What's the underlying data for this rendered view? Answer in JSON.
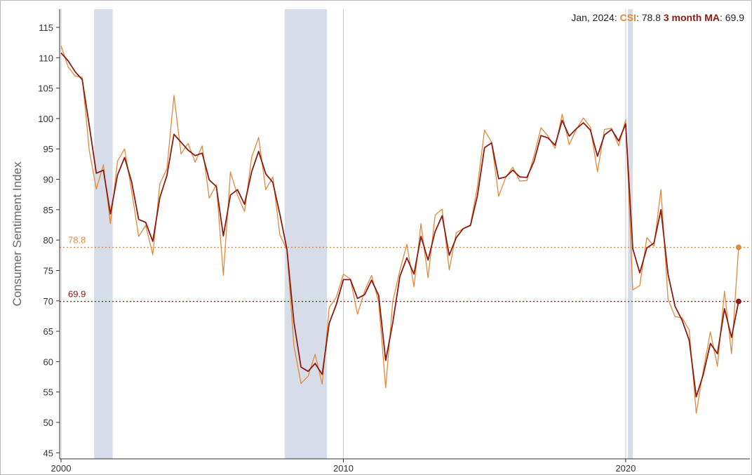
{
  "readout": {
    "date": "Jan, 2024",
    "sep1": ": ",
    "csi_name": "CSI",
    "sep2": ": ",
    "csi_value": "78.8",
    "ma_name": " 3 month MA",
    "sep3": ": ",
    "ma_value": "69.9"
  },
  "colors": {
    "csi": "#e08a3c",
    "ma": "#8b1a12",
    "recession": "#d6dde9",
    "axis": "#333333",
    "gridline": "#c8c8c8"
  },
  "chart_data": {
    "type": "line",
    "title": "",
    "xlabel": "",
    "ylabel": "Consumer Sentiment Index",
    "xlim": [
      1999.95,
      2024.4
    ],
    "ylim": [
      44,
      118
    ],
    "y_ticks": [
      45,
      50,
      55,
      60,
      65,
      70,
      75,
      80,
      85,
      90,
      95,
      100,
      105,
      110,
      115
    ],
    "x_ticks": [
      2000,
      2010,
      2020
    ],
    "x_tick_labels": [
      "2000",
      "2010",
      "2020"
    ],
    "recessions": [
      [
        2001.17,
        2001.83
      ],
      [
        2007.92,
        2009.42
      ],
      [
        2020.08,
        2020.25
      ]
    ],
    "reference_lines": [
      {
        "series": "CSI",
        "value": 78.8,
        "label": "78.8"
      },
      {
        "series": "3 month MA",
        "value": 69.9,
        "label": "69.9"
      }
    ],
    "series": [
      {
        "name": "CSI",
        "points": [
          [
            2000.0,
            112.0
          ],
          [
            2000.25,
            108.5
          ],
          [
            2000.5,
            107.0
          ],
          [
            2000.75,
            106.8
          ],
          [
            2001.0,
            94.7
          ],
          [
            2001.25,
            88.4
          ],
          [
            2001.5,
            92.4
          ],
          [
            2001.75,
            82.7
          ],
          [
            2002.0,
            93.0
          ],
          [
            2002.25,
            95.0
          ],
          [
            2002.5,
            88.1
          ],
          [
            2002.75,
            80.6
          ],
          [
            2003.0,
            82.4
          ],
          [
            2003.25,
            77.6
          ],
          [
            2003.5,
            89.3
          ],
          [
            2003.75,
            91.7
          ],
          [
            2004.0,
            103.8
          ],
          [
            2004.25,
            94.2
          ],
          [
            2004.5,
            95.9
          ],
          [
            2004.75,
            92.8
          ],
          [
            2005.0,
            95.5
          ],
          [
            2005.25,
            86.9
          ],
          [
            2005.5,
            89.1
          ],
          [
            2005.75,
            74.2
          ],
          [
            2006.0,
            91.2
          ],
          [
            2006.25,
            87.4
          ],
          [
            2006.5,
            84.7
          ],
          [
            2006.75,
            93.6
          ],
          [
            2007.0,
            96.9
          ],
          [
            2007.25,
            88.3
          ],
          [
            2007.5,
            90.4
          ],
          [
            2007.75,
            80.9
          ],
          [
            2008.0,
            78.4
          ],
          [
            2008.25,
            62.6
          ],
          [
            2008.5,
            56.4
          ],
          [
            2008.75,
            57.6
          ],
          [
            2009.0,
            61.2
          ],
          [
            2009.25,
            56.3
          ],
          [
            2009.5,
            68.9
          ],
          [
            2009.75,
            70.6
          ],
          [
            2010.0,
            74.4
          ],
          [
            2010.25,
            73.6
          ],
          [
            2010.5,
            67.8
          ],
          [
            2010.75,
            71.6
          ],
          [
            2011.0,
            74.2
          ],
          [
            2011.25,
            69.8
          ],
          [
            2011.5,
            55.7
          ],
          [
            2011.75,
            69.9
          ],
          [
            2012.0,
            75.0
          ],
          [
            2012.25,
            79.3
          ],
          [
            2012.5,
            72.3
          ],
          [
            2012.75,
            82.7
          ],
          [
            2013.0,
            73.8
          ],
          [
            2013.25,
            84.1
          ],
          [
            2013.5,
            85.1
          ],
          [
            2013.75,
            75.1
          ],
          [
            2014.0,
            81.2
          ],
          [
            2014.25,
            81.9
          ],
          [
            2014.5,
            82.5
          ],
          [
            2014.75,
            88.8
          ],
          [
            2015.0,
            98.1
          ],
          [
            2015.25,
            96.1
          ],
          [
            2015.5,
            87.2
          ],
          [
            2015.75,
            90.3
          ],
          [
            2016.0,
            92.0
          ],
          [
            2016.25,
            89.7
          ],
          [
            2016.5,
            89.8
          ],
          [
            2016.75,
            93.8
          ],
          [
            2017.0,
            98.5
          ],
          [
            2017.25,
            97.1
          ],
          [
            2017.5,
            95.1
          ],
          [
            2017.75,
            100.7
          ],
          [
            2018.0,
            95.7
          ],
          [
            2018.25,
            98.2
          ],
          [
            2018.5,
            100.1
          ],
          [
            2018.75,
            98.6
          ],
          [
            2019.0,
            91.2
          ],
          [
            2019.25,
            98.2
          ],
          [
            2019.5,
            98.4
          ],
          [
            2019.75,
            95.5
          ],
          [
            2020.0,
            99.8
          ],
          [
            2020.25,
            71.8
          ],
          [
            2020.5,
            72.5
          ],
          [
            2020.75,
            80.4
          ],
          [
            2021.0,
            79.0
          ],
          [
            2021.25,
            88.3
          ],
          [
            2021.5,
            70.3
          ],
          [
            2021.75,
            67.4
          ],
          [
            2022.0,
            67.2
          ],
          [
            2022.25,
            65.2
          ],
          [
            2022.5,
            51.5
          ],
          [
            2022.75,
            58.6
          ],
          [
            2023.0,
            64.9
          ],
          [
            2023.25,
            59.2
          ],
          [
            2023.5,
            71.6
          ],
          [
            2023.75,
            61.3
          ],
          [
            2024.0,
            78.8
          ]
        ]
      },
      {
        "name": "3 month MA",
        "points": [
          [
            2000.0,
            110.8
          ],
          [
            2000.25,
            109.5
          ],
          [
            2000.5,
            107.7
          ],
          [
            2000.75,
            106.4
          ],
          [
            2001.0,
            98.8
          ],
          [
            2001.25,
            91.0
          ],
          [
            2001.5,
            91.5
          ],
          [
            2001.75,
            84.3
          ],
          [
            2002.0,
            90.7
          ],
          [
            2002.25,
            93.6
          ],
          [
            2002.5,
            89.6
          ],
          [
            2002.75,
            83.4
          ],
          [
            2003.0,
            82.9
          ],
          [
            2003.25,
            79.8
          ],
          [
            2003.5,
            87.0
          ],
          [
            2003.75,
            90.6
          ],
          [
            2004.0,
            97.4
          ],
          [
            2004.25,
            96.1
          ],
          [
            2004.5,
            94.8
          ],
          [
            2004.75,
            93.9
          ],
          [
            2005.0,
            94.3
          ],
          [
            2005.25,
            89.9
          ],
          [
            2005.5,
            88.8
          ],
          [
            2005.75,
            80.7
          ],
          [
            2006.0,
            87.4
          ],
          [
            2006.25,
            88.3
          ],
          [
            2006.5,
            85.9
          ],
          [
            2006.75,
            91.2
          ],
          [
            2007.0,
            94.6
          ],
          [
            2007.25,
            90.9
          ],
          [
            2007.5,
            89.5
          ],
          [
            2007.75,
            84.3
          ],
          [
            2008.0,
            78.5
          ],
          [
            2008.25,
            66.5
          ],
          [
            2008.5,
            59.1
          ],
          [
            2008.75,
            58.4
          ],
          [
            2009.0,
            59.7
          ],
          [
            2009.25,
            57.9
          ],
          [
            2009.5,
            66.3
          ],
          [
            2009.75,
            69.4
          ],
          [
            2010.0,
            73.5
          ],
          [
            2010.25,
            73.5
          ],
          [
            2010.5,
            70.4
          ],
          [
            2010.75,
            71.0
          ],
          [
            2011.0,
            73.4
          ],
          [
            2011.25,
            70.9
          ],
          [
            2011.5,
            60.2
          ],
          [
            2011.75,
            66.4
          ],
          [
            2012.0,
            74.0
          ],
          [
            2012.25,
            77.1
          ],
          [
            2012.5,
            74.4
          ],
          [
            2012.75,
            80.6
          ],
          [
            2013.0,
            76.7
          ],
          [
            2013.25,
            81.4
          ],
          [
            2013.5,
            84.0
          ],
          [
            2013.75,
            77.5
          ],
          [
            2014.0,
            80.4
          ],
          [
            2014.25,
            81.9
          ],
          [
            2014.5,
            82.4
          ],
          [
            2014.75,
            87.3
          ],
          [
            2015.0,
            95.2
          ],
          [
            2015.25,
            96.0
          ],
          [
            2015.5,
            90.1
          ],
          [
            2015.75,
            90.4
          ],
          [
            2016.0,
            91.5
          ],
          [
            2016.25,
            90.4
          ],
          [
            2016.5,
            90.3
          ],
          [
            2016.75,
            92.9
          ],
          [
            2017.0,
            97.2
          ],
          [
            2017.25,
            96.8
          ],
          [
            2017.5,
            95.6
          ],
          [
            2017.75,
            99.7
          ],
          [
            2018.0,
            97.1
          ],
          [
            2018.25,
            98.3
          ],
          [
            2018.5,
            99.3
          ],
          [
            2018.75,
            98.1
          ],
          [
            2019.0,
            93.8
          ],
          [
            2019.25,
            97.3
          ],
          [
            2019.5,
            98.2
          ],
          [
            2019.75,
            96.3
          ],
          [
            2020.0,
            99.1
          ],
          [
            2020.25,
            78.6
          ],
          [
            2020.5,
            74.6
          ],
          [
            2020.75,
            78.7
          ],
          [
            2021.0,
            79.5
          ],
          [
            2021.25,
            85.0
          ],
          [
            2021.5,
            74.4
          ],
          [
            2021.75,
            69.1
          ],
          [
            2022.0,
            66.8
          ],
          [
            2022.25,
            63.5
          ],
          [
            2022.5,
            54.2
          ],
          [
            2022.75,
            57.9
          ],
          [
            2023.0,
            63.0
          ],
          [
            2023.25,
            61.3
          ],
          [
            2023.5,
            68.7
          ],
          [
            2023.75,
            64.0
          ],
          [
            2024.0,
            69.9
          ]
        ]
      }
    ]
  }
}
